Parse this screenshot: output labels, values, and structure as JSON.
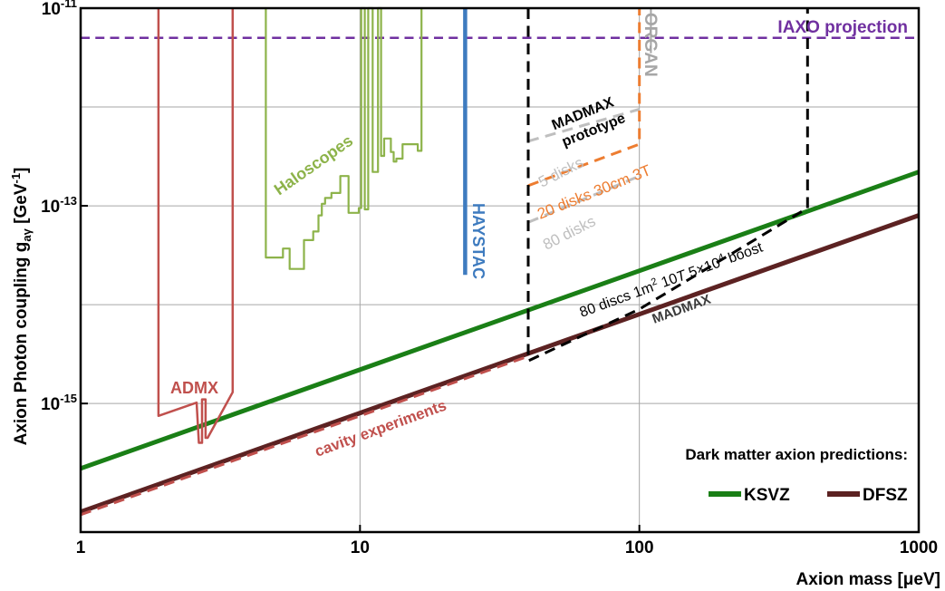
{
  "chart_data": {
    "type": "line",
    "x_scale": "log",
    "y_scale": "log",
    "xlim": [
      1,
      1000
    ],
    "ylim": [
      5e-17,
      1e-11
    ],
    "xlabel": "Axion mass [μeV]",
    "ylabel_main": "Axion Photon coupling g",
    "ylabel_sub": "aγ",
    "ylabel_unit": " [GeV",
    "ylabel_exp": "-1",
    "ylabel_close": "]",
    "grid": true,
    "x_ticks": [
      {
        "value": 1,
        "label": "1"
      },
      {
        "value": 10,
        "label": "10"
      },
      {
        "value": 100,
        "label": "100"
      },
      {
        "value": 1000,
        "label": "1000"
      }
    ],
    "y_ticks": [
      {
        "value": 1e-11,
        "base": "10",
        "exp": "-11"
      },
      {
        "value": 1e-13,
        "base": "10",
        "exp": "-13"
      },
      {
        "value": 1e-15,
        "base": "10",
        "exp": "-15"
      }
    ],
    "y_gridlines": [
      1e-11,
      1e-12,
      1e-13,
      1e-14,
      1e-15
    ],
    "legend": {
      "title": "Dark matter axion predictions:",
      "placement": "bottom-right",
      "items": [
        {
          "label": "KSVZ",
          "color": "#1a7f16"
        },
        {
          "label": "DFSZ",
          "color": "#5c2222"
        }
      ]
    },
    "series": [
      {
        "name": "KSVZ",
        "color": "#1a7f16",
        "style": "solid",
        "points": [
          [
            1,
            2.2e-16
          ],
          [
            1000,
            2.2e-13
          ]
        ]
      },
      {
        "name": "DFSZ",
        "color": "#5c2222",
        "style": "solid",
        "points": [
          [
            1,
            8e-17
          ],
          [
            1000,
            8e-14
          ]
        ]
      },
      {
        "name": "cavity experiments",
        "color": "#c0504d",
        "style": "dashed",
        "points": [
          [
            1,
            7.5e-17
          ],
          [
            40,
            3e-15
          ]
        ]
      },
      {
        "name": "IAXO projection",
        "color": "#7030a0",
        "style": "dashed",
        "points": [
          [
            1,
            5e-12
          ],
          [
            1000,
            5e-12
          ]
        ]
      },
      {
        "name": "ADMX",
        "color": "#c0504d",
        "style": "solid",
        "points": [
          [
            1.9,
            1e-11
          ],
          [
            1.9,
            7.5e-16
          ],
          [
            2.6,
            1.02e-15
          ],
          [
            2.65,
            4e-16
          ],
          [
            2.72,
            4e-16
          ],
          [
            2.72,
            1.1e-15
          ],
          [
            2.8,
            1.1e-15
          ],
          [
            2.8,
            4.5e-16
          ],
          [
            2.85,
            4.5e-16
          ],
          [
            3.5,
            1.3e-15
          ],
          [
            3.5,
            1e-11
          ]
        ]
      },
      {
        "name": "Haloscopes",
        "color": "#8db34a",
        "style": "solid",
        "points": [
          [
            4.6,
            1e-11
          ],
          [
            4.6,
            3e-14
          ],
          [
            5.3,
            3e-14
          ],
          [
            5.3,
            3.7e-14
          ],
          [
            5.6,
            3.7e-14
          ],
          [
            5.6,
            2.3e-14
          ],
          [
            6.3,
            2.3e-14
          ],
          [
            6.3,
            4.5e-14
          ],
          [
            6.8,
            4.5e-14
          ],
          [
            6.8,
            5.5e-14
          ],
          [
            7.1,
            5.5e-14
          ],
          [
            7.1,
            8e-14
          ],
          [
            7.3,
            8e-14
          ],
          [
            7.3,
            1.05e-13
          ],
          [
            7.5,
            1.05e-13
          ],
          [
            7.5,
            1.2e-13
          ],
          [
            7.9,
            1.2e-13
          ],
          [
            7.9,
            1.35e-13
          ],
          [
            8.5,
            1.35e-13
          ],
          [
            8.5,
            2e-13
          ],
          [
            9.1,
            2e-13
          ],
          [
            9.1,
            8.5e-14
          ],
          [
            9.9,
            8.5e-14
          ],
          [
            9.9,
            9.5e-14
          ],
          [
            10.1,
            9.5e-14
          ],
          [
            10.1,
            1e-11
          ],
          [
            10.4,
            1e-11
          ],
          [
            10.4,
            9.2e-14
          ],
          [
            10.7,
            9.2e-14
          ],
          [
            10.7,
            1e-11
          ],
          [
            11.1,
            1e-11
          ],
          [
            11.1,
            2.2e-13
          ],
          [
            11.6,
            2.2e-13
          ],
          [
            11.6,
            1e-11
          ],
          [
            11.9,
            1e-11
          ],
          [
            11.9,
            3.2e-13
          ],
          [
            12.2,
            3.2e-13
          ],
          [
            12.2,
            4.8e-13
          ],
          [
            12.9,
            4.8e-13
          ],
          [
            12.9,
            3.5e-13
          ],
          [
            13.2,
            3.5e-13
          ],
          [
            13.2,
            2.8e-13
          ],
          [
            13.5,
            2.8e-13
          ],
          [
            13.5,
            3e-13
          ],
          [
            14.2,
            3e-13
          ],
          [
            14.2,
            4.2e-13
          ],
          [
            14.9,
            4.2e-13
          ],
          [
            14.9,
            4.2e-13
          ],
          [
            16.1,
            4.2e-13
          ],
          [
            16.1,
            3.6e-13
          ],
          [
            16.6,
            3.6e-13
          ],
          [
            16.6,
            1e-11
          ]
        ]
      },
      {
        "name": "HAYSTAC",
        "color": "#3e7bbf",
        "style": "solid",
        "points": [
          [
            23.8,
            1e-11
          ],
          [
            23.8,
            2e-14
          ]
        ]
      },
      {
        "name": "ORGAN",
        "color": "#a6a6a6",
        "style": "solid",
        "points": [
          [
            110,
            1e-11
          ],
          [
            110,
            3.5e-12
          ]
        ]
      },
      {
        "name": "MADMAX prototype 5 disks",
        "color": "#bfbfbf",
        "style": "dashed",
        "points": [
          [
            40,
            4.5e-13
          ],
          [
            100,
            9.5e-13
          ]
        ]
      },
      {
        "name": "MADMAX prototype 20 disks 30cm 3T",
        "color": "#ed7d31",
        "style": "dashed",
        "points": [
          [
            40,
            1.6e-13
          ],
          [
            100,
            4.2e-13
          ],
          [
            100,
            1e-11
          ]
        ]
      },
      {
        "name": "MADMAX prototype 80 disks",
        "color": "#bfbfbf",
        "style": "dashed",
        "points": [
          [
            40,
            6.8e-14
          ],
          [
            100,
            2e-13
          ]
        ]
      },
      {
        "name": "MADMAX",
        "color": "#000000",
        "style": "dashed",
        "points": [
          [
            40,
            1e-11
          ],
          [
            40,
            2.7e-15
          ],
          [
            100,
            9e-15
          ],
          [
            400,
            9.5e-14
          ],
          [
            400,
            1e-11
          ]
        ]
      }
    ],
    "annotations": {
      "iaxo": {
        "text": "IAXO projection",
        "color": "#7030a0"
      },
      "organ": {
        "text": "ORGAN",
        "color": "#a6a6a6"
      },
      "madmax_proto1": {
        "text": "MADMAX",
        "color": "#000000"
      },
      "madmax_proto2": {
        "text": "prototype",
        "color": "#000000"
      },
      "five_disks": {
        "text": "5 disks",
        "color": "#bfbfbf"
      },
      "twenty_disks": {
        "text": "20 disks 30cm 3T",
        "color": "#ed7d31"
      },
      "eighty_disks": {
        "text": "80 disks",
        "color": "#bfbfbf"
      },
      "haloscopes": {
        "text": "Haloscopes",
        "color": "#8db34a"
      },
      "haystac": {
        "text": "HAYSTAC",
        "color": "#3e7bbf"
      },
      "admx": {
        "text": "ADMX",
        "color": "#c0504d"
      },
      "cavity": {
        "text": "cavity experiments",
        "color": "#c0504d"
      },
      "madmax": {
        "text": "MADMAX",
        "color": "#3b3b3b"
      },
      "discs_a": "80 discs 1m",
      "discs_b": "2",
      "discs_c": " 10",
      "discs_d": "T",
      "discs_e": " 5×10",
      "discs_f": "4",
      "discs_g": " boost"
    }
  }
}
